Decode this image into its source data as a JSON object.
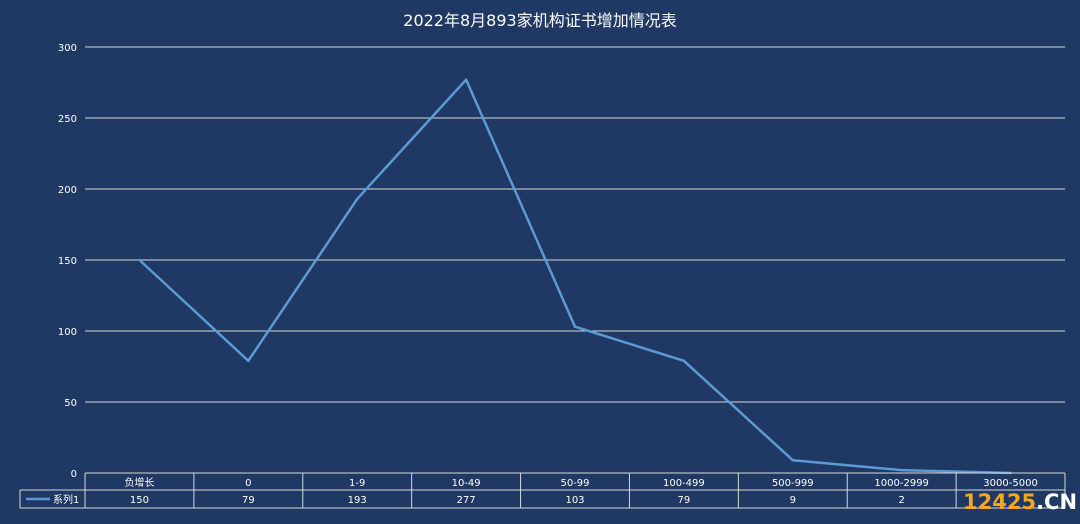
{
  "chart_data": {
    "type": "line",
    "title": "2022年8月893家机构证书增加情况表",
    "categories": [
      "负增长",
      "0",
      "1-9",
      "10-49",
      "50-99",
      "100-499",
      "500-999",
      "1000-2999",
      "3000-5000"
    ],
    "series": [
      {
        "name": "系列1",
        "values": [
          150,
          79,
          193,
          277,
          103,
          79,
          9,
          2,
          0
        ],
        "color": "#5b9bd5"
      }
    ],
    "table_values": [
      "150",
      "79",
      "193",
      "277",
      "103",
      "79",
      "9",
      "2",
      ""
    ],
    "ylim": [
      0,
      300
    ],
    "yticks": [
      0,
      50,
      100,
      150,
      200,
      250,
      300
    ],
    "grid": true,
    "data_table": true,
    "colors": {
      "background": "#1f3864",
      "gridline": "#d9d9d9",
      "text": "#ffffff"
    }
  },
  "watermark": {
    "part1": "12425",
    "part2": ".CN"
  }
}
